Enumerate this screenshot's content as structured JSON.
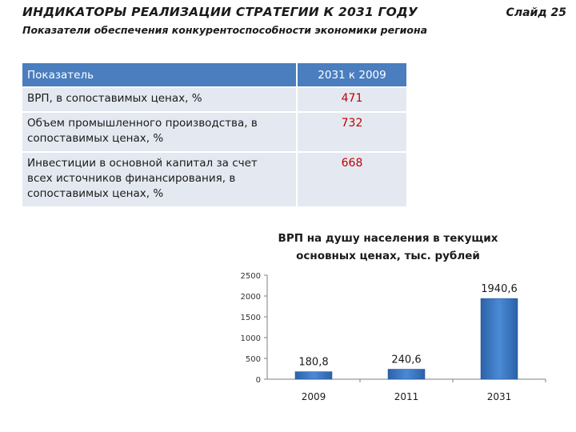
{
  "header": {
    "title": "ИНДИКАТОРЫ РЕАЛИЗАЦИИ СТРАТЕГИИ К 2031 ГОДУ",
    "slide_number": "Слайд 25",
    "subtitle": "Показатели обеспечения конкурентоспособности  экономики региона"
  },
  "table": {
    "headers": [
      "Показатель",
      "2031 к 2009"
    ],
    "rows": [
      {
        "label": "ВРП, в сопоставимых ценах, %",
        "value": "471"
      },
      {
        "label": "Объем промышленного производства, в сопоставимых ценах, %",
        "value": "732"
      },
      {
        "label": "Инвестиции в основной капитал за счет всех источников  финансирования, в сопоставимых ценах, %",
        "value": "668"
      }
    ]
  },
  "chart_data": {
    "type": "bar",
    "title": "ВРП на душу населения в текущих основных ценах, тыс. рублей",
    "title_lines": [
      "ВРП на душу населения в текущих",
      "основных ценах, тыс. рублей"
    ],
    "categories": [
      "2009",
      "2011",
      "2031"
    ],
    "values": [
      180.8,
      240.6,
      1940.6
    ],
    "data_labels": [
      "180,8",
      "240,6",
      "1940,6"
    ],
    "yticks": [
      "0",
      "500",
      "1000",
      "1500",
      "2000",
      "2500"
    ],
    "ylim": [
      0,
      2500
    ],
    "grid": false,
    "colors": {
      "bar": "#3a78c4",
      "bar_dark": "#1f4f8e",
      "axis": "#7f7f7f"
    }
  }
}
